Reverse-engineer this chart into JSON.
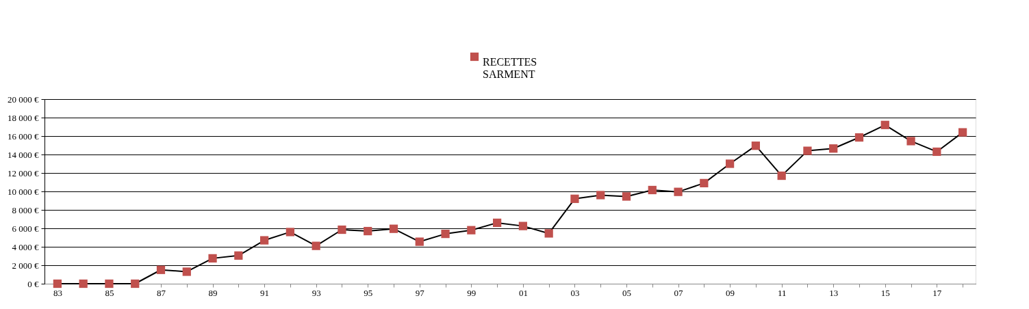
{
  "chart_data": {
    "type": "line",
    "categories": [
      "83",
      null,
      "85",
      null,
      "87",
      null,
      "89",
      null,
      "91",
      null,
      "93",
      null,
      "95",
      null,
      "97",
      null,
      "99",
      null,
      "01",
      null,
      "03",
      null,
      "05",
      null,
      "07",
      null,
      "09",
      null,
      "11",
      null,
      "13",
      null,
      "15",
      null,
      "17",
      null
    ],
    "series": [
      {
        "name": "RECETTES SARMENT",
        "color": "#c0504d",
        "values": [
          0,
          0,
          0,
          0,
          1500,
          1300,
          2750,
          3050,
          4700,
          5600,
          4100,
          5850,
          5700,
          5950,
          4550,
          5400,
          5800,
          6600,
          6250,
          5450,
          9200,
          9600,
          9450,
          10150,
          9950,
          10900,
          13000,
          14950,
          11700,
          14400,
          14650,
          15850,
          17200,
          15450,
          14300,
          16400
        ]
      }
    ],
    "ylim": [
      0,
      20000
    ],
    "yticks": [
      {
        "value": 0,
        "label": "0 €"
      },
      {
        "value": 2000,
        "label": "2 000 €"
      },
      {
        "value": 4000,
        "label": "4 000 €"
      },
      {
        "value": 6000,
        "label": "6 000 €"
      },
      {
        "value": 8000,
        "label": "8 000 €"
      },
      {
        "value": 10000,
        "label": "10 000 €"
      },
      {
        "value": 12000,
        "label": "12 000 €"
      },
      {
        "value": 14000,
        "label": "14 000 €"
      },
      {
        "value": 16000,
        "label": "16 000 €"
      },
      {
        "value": 18000,
        "label": "18 000 €"
      },
      {
        "value": 20000,
        "label": "20 000 €"
      }
    ],
    "grid": "y",
    "legend": "top",
    "marker": "square",
    "line_style": "solid"
  }
}
